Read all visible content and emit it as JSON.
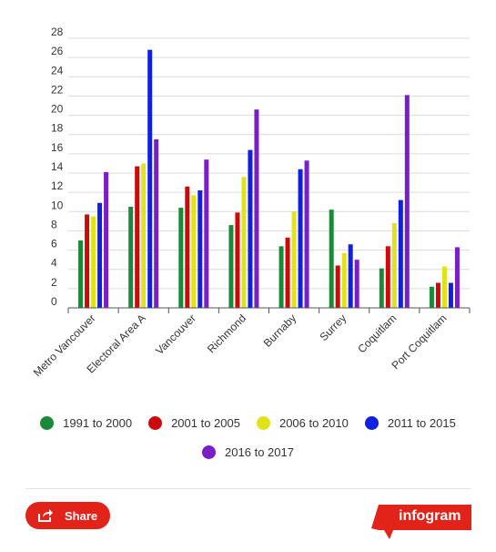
{
  "chart_data": {
    "type": "bar",
    "title": "",
    "xlabel": "",
    "ylabel": "",
    "ylim": [
      0,
      28
    ],
    "yticks": [
      0,
      2,
      4,
      6,
      8,
      10,
      12,
      14,
      16,
      18,
      20,
      22,
      24,
      26,
      28
    ],
    "grid": true,
    "legend_position": "bottom",
    "categories": [
      "Metro Vancouver",
      "Electoral Area A",
      "Vancouver",
      "Richmond",
      "Burnaby",
      "Surrey",
      "Coquitlam",
      "Port Coquitlam"
    ],
    "series": [
      {
        "name": "1991 to 2000",
        "color": "#1a8a3a",
        "values": [
          7.0,
          10.5,
          10.4,
          8.6,
          6.4,
          10.2,
          4.1,
          2.2
        ]
      },
      {
        "name": "2001 to 2005",
        "color": "#cc0a0a",
        "values": [
          9.7,
          14.7,
          12.6,
          9.9,
          7.3,
          4.4,
          6.4,
          2.6
        ]
      },
      {
        "name": "2006 to 2010",
        "color": "#e2e21a",
        "values": [
          9.5,
          15.0,
          11.7,
          13.6,
          10.0,
          5.7,
          8.8,
          4.3
        ]
      },
      {
        "name": "2011 to 2015",
        "color": "#1020e0",
        "values": [
          10.9,
          26.8,
          12.2,
          16.4,
          14.4,
          6.6,
          11.2,
          2.6
        ]
      },
      {
        "name": "2016 to 2017",
        "color": "#7a1ec8",
        "values": [
          14.1,
          17.5,
          15.4,
          20.6,
          15.3,
          5.0,
          22.1,
          6.3
        ]
      }
    ]
  },
  "footer": {
    "share_label": "Share",
    "brand_label": "infogram",
    "brand_color": "#e2231a"
  }
}
